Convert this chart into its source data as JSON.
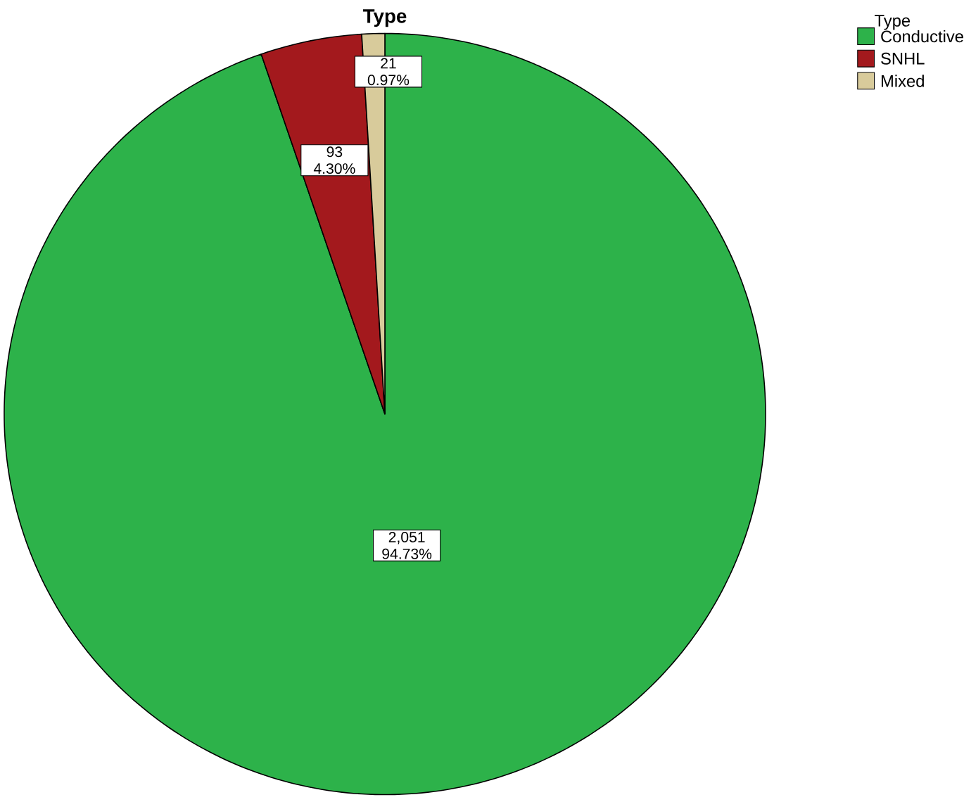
{
  "chart_data": {
    "type": "pie",
    "title": "Type",
    "legend_title": "Type",
    "legend": "top right",
    "categories": [
      "Conductive",
      "SNHL",
      "Mixed"
    ],
    "values": [
      2051,
      93,
      21
    ],
    "colors": [
      "#2db24a",
      "#a3191d",
      "#d8cb9b"
    ],
    "value_labels": [
      "2,051 94.73%",
      "93 4.30%",
      "21 0.97%"
    ]
  }
}
